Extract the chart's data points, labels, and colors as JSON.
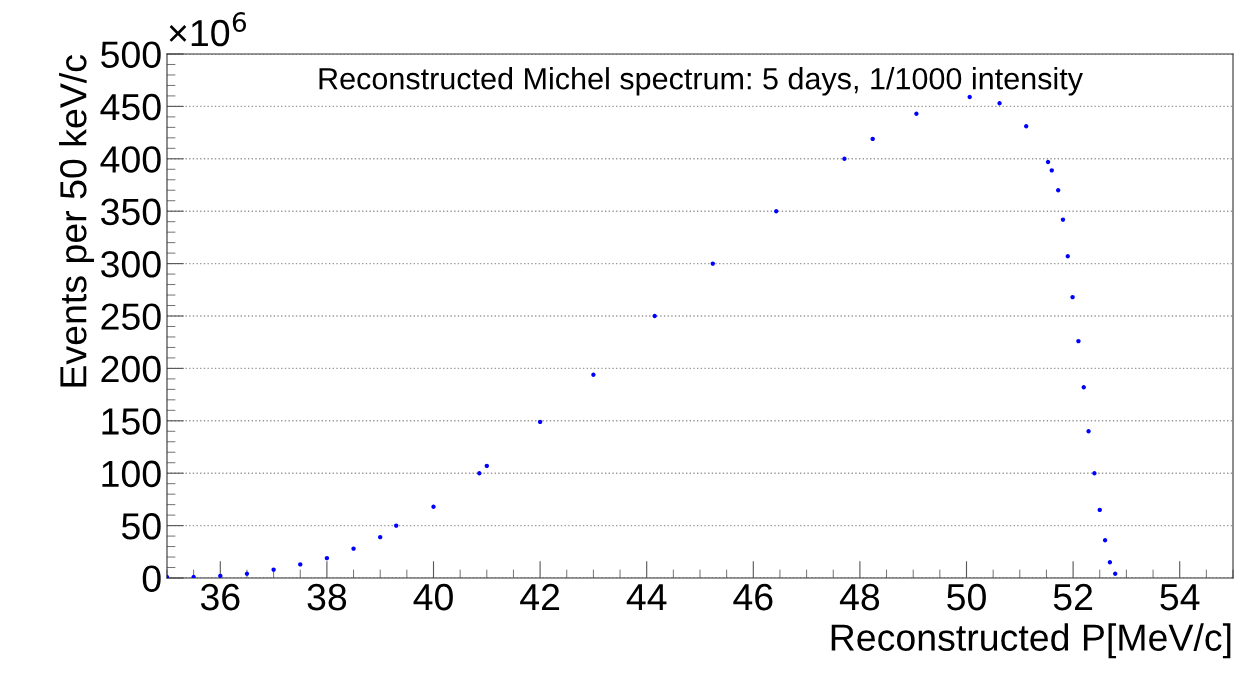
{
  "chart_data": {
    "type": "scatter",
    "title": "Reconstructed Michel spectrum: 5 days, 1/1000 intensity",
    "xlabel": "Reconstructed P[MeV/c]",
    "ylabel": "Events per 50 keV/c",
    "annotations": [
      "×10$^{6}$"
    ],
    "x": [
      35.0,
      35.5,
      36,
      36.5,
      37,
      37.5,
      38,
      38.5,
      39,
      39.3,
      40,
      40.86,
      41,
      42,
      43,
      44.15,
      45.24,
      46.43,
      47.71,
      48.24,
      49.06,
      50.06,
      50.62,
      51.12,
      51.53,
      51.6,
      51.72,
      51.81,
      51.9,
      51.99,
      52.1,
      52.2,
      52.29,
      52.4,
      52.5,
      52.6,
      52.69,
      52.79
    ],
    "series": [
      {
        "color": "#0000ff",
        "values": [
          1,
          1,
          2,
          4,
          8,
          13,
          19,
          28,
          39,
          50,
          68,
          100,
          107,
          149,
          194,
          250,
          300,
          350,
          400,
          419,
          443,
          459,
          453,
          431,
          397,
          389,
          370,
          342,
          307,
          268,
          226,
          182,
          140,
          100,
          65,
          36,
          15,
          4
        ]
      }
    ],
    "xlim": [
      35,
      55
    ],
    "ylim": [
      0,
      500
    ],
    "xticks": [
      36,
      38,
      40,
      42,
      44,
      46,
      48,
      50,
      52,
      54
    ],
    "yticks": [
      0,
      50,
      100,
      150,
      200,
      250,
      300,
      350,
      400,
      450,
      500
    ],
    "grid": "y",
    "marker": "circle",
    "legend": false
  }
}
